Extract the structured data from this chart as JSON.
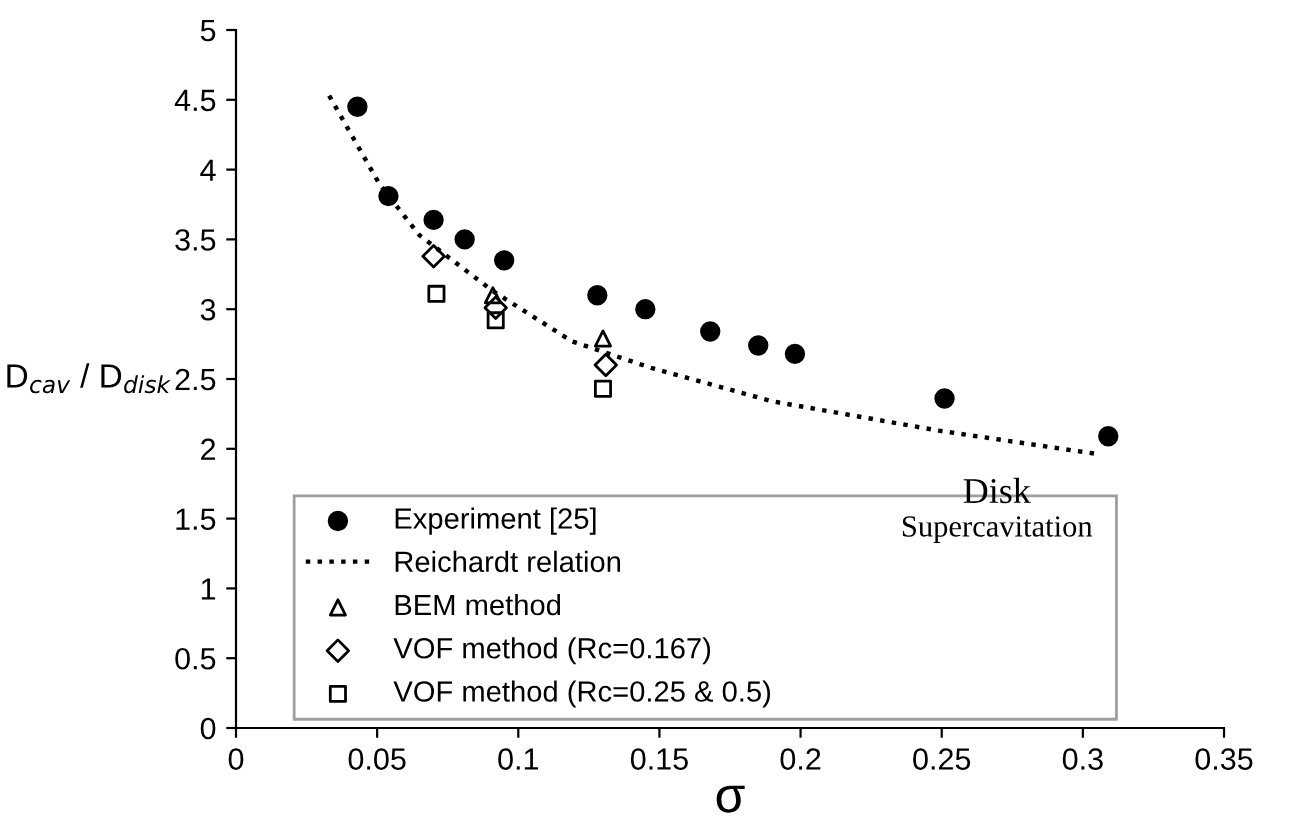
{
  "chart_data": {
    "type": "scatter",
    "xlabel": "σ",
    "ylabel": "D$_{cav}$ / D$_{disk}$",
    "xlim": [
      0,
      0.35
    ],
    "xticks": [
      0,
      0.05,
      0.1,
      0.15,
      0.2,
      0.25,
      0.3,
      0.35
    ],
    "ylim": [
      0,
      5
    ],
    "yticks": [
      0,
      0.5,
      1,
      1.5,
      2,
      2.5,
      3,
      3.5,
      4,
      4.5,
      5
    ],
    "grid": false,
    "legend": "bottom left",
    "annotations": [
      "Disk",
      "Supercavitation"
    ],
    "series": [
      {
        "name": "Experiment [25]",
        "type": "scatter",
        "marker": "circle",
        "color": "#000000",
        "x": [
          0.043,
          0.054,
          0.07,
          0.081,
          0.095,
          0.128,
          0.145,
          0.168,
          0.185,
          0.198,
          0.251,
          0.309
        ],
        "values": [
          4.45,
          3.81,
          3.64,
          3.5,
          3.35,
          3.1,
          3.0,
          2.84,
          2.74,
          2.68,
          2.36,
          2.09
        ]
      },
      {
        "name": "Reichardt relation",
        "type": "line",
        "line_style": "dotted",
        "marker": "none",
        "color": "#000000",
        "x": [
          0.033,
          0.051,
          0.065,
          0.091,
          0.119,
          0.147,
          0.19,
          0.249,
          0.306
        ],
        "values": [
          4.53,
          3.89,
          3.53,
          3.13,
          2.77,
          2.58,
          2.34,
          2.13,
          1.96
        ]
      },
      {
        "name": "BEM method",
        "type": "scatter",
        "marker": "triangle",
        "color": "#000000",
        "x": [
          0.091,
          0.13
        ],
        "values": [
          3.1,
          2.79
        ]
      },
      {
        "name": "VOF method (Rc=0.167)",
        "type": "scatter",
        "marker": "diamond",
        "color": "#000000",
        "x": [
          0.07,
          0.092,
          0.131
        ],
        "values": [
          3.38,
          3.01,
          2.6
        ]
      },
      {
        "name": "VOF method (Rc=0.25 & 0.5)",
        "type": "scatter",
        "marker": "square",
        "color": "#000000",
        "x": [
          0.071,
          0.092,
          0.13
        ],
        "values": [
          3.11,
          2.92,
          2.43
        ]
      }
    ]
  }
}
